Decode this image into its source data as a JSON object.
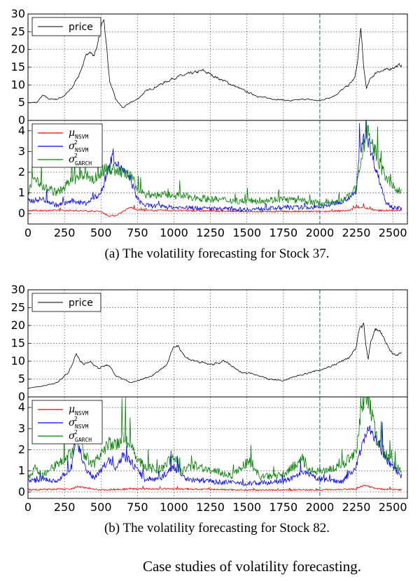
{
  "figure_caption": "Case studies of volatility forecasting.",
  "split_x": 2000,
  "chart_data": [
    {
      "id": "a",
      "type": "line",
      "caption": "(a) The volatility forecasting for Stock 37.",
      "xlim": [
        0,
        2600
      ],
      "xticks": [
        0,
        250,
        500,
        750,
        1000,
        1250,
        1500,
        1750,
        2000,
        2250,
        2500
      ],
      "top": {
        "ylim": [
          0,
          30
        ],
        "yticks": [
          0,
          5,
          10,
          15,
          20,
          25,
          30
        ],
        "legend": [
          "price"
        ],
        "series": [
          {
            "name": "price",
            "color": "#000000",
            "x": [
              0,
              60,
              100,
              150,
              200,
              250,
              300,
              350,
              380,
              420,
              450,
              480,
              500,
              520,
              540,
              560,
              600,
              650,
              700,
              750,
              800,
              900,
              1000,
              1100,
              1200,
              1300,
              1400,
              1500,
              1600,
              1700,
              1800,
              1900,
              2000,
              2100,
              2200,
              2240,
              2260,
              2280,
              2300,
              2320,
              2350,
              2400,
              2450,
              2500,
              2550,
              2600
            ],
            "y": [
              5,
              5,
              7,
              6,
              6,
              7,
              9,
              13,
              16,
              20,
              18,
              22,
              26,
              29,
              20,
              11,
              6,
              3.5,
              5,
              6,
              8,
              10,
              12,
              13,
              14,
              12,
              10,
              8,
              6.5,
              6,
              5.5,
              6,
              5.5,
              7,
              10,
              12,
              17,
              26,
              15,
              9,
              12,
              14,
              14,
              15,
              15.5,
              16
            ]
          }
        ]
      },
      "bottom": {
        "ylim": [
          -0.5,
          4.5
        ],
        "yticks": [
          0,
          1,
          2,
          3,
          4
        ],
        "legend": [
          "μNSVM",
          "σ²NSVM",
          "σ²GARCH"
        ],
        "series": [
          {
            "name": "μNSVM",
            "color": "#ff0000",
            "x": [
              0,
              300,
              500,
              550,
              600,
              650,
              700,
              750,
              800,
              1000,
              1500,
              2000,
              2200,
              2250,
              2300,
              2350,
              2400,
              2600
            ],
            "y": [
              0.15,
              0.15,
              0.1,
              -0.1,
              -0.1,
              0.1,
              0.3,
              0.2,
              0.15,
              0.15,
              0.1,
              0.1,
              0.15,
              0.3,
              0.3,
              0.2,
              0.15,
              0.15
            ]
          },
          {
            "name": "σ²NSVM",
            "color": "#0000ff",
            "x": [
              0,
              100,
              200,
              300,
              400,
              500,
              550,
              580,
              620,
              660,
              700,
              750,
              800,
              1000,
              1500,
              1800,
              2000,
              2150,
              2250,
              2270,
              2300,
              2330,
              2350,
              2400,
              2450,
              2500,
              2600
            ],
            "y": [
              0.6,
              0.7,
              0.4,
              0.6,
              0.5,
              1.0,
              2.0,
              2.9,
              2.3,
              2.0,
              1.7,
              0.7,
              0.4,
              0.3,
              0.2,
              0.3,
              0.3,
              0.6,
              1.0,
              2.8,
              3.8,
              3.6,
              3.0,
              1.8,
              0.6,
              0.3,
              0.2
            ]
          },
          {
            "name": "σ²GARCH",
            "color": "#008000",
            "x": [
              0,
              50,
              100,
              200,
              300,
              400,
              450,
              500,
              550,
              600,
              650,
              700,
              750,
              800,
              1000,
              1250,
              1500,
              1750,
              2000,
              2150,
              2250,
              2280,
              2320,
              2350,
              2400,
              2450,
              2500,
              2600
            ],
            "y": [
              1.0,
              1.8,
              1.3,
              1.0,
              1.6,
              1.9,
              1.6,
              2.0,
              2.2,
              2.1,
              2.0,
              1.8,
              1.3,
              0.9,
              0.9,
              0.7,
              0.6,
              0.7,
              0.5,
              0.6,
              1.2,
              2.2,
              4.2,
              3.6,
              2.5,
              1.8,
              1.3,
              0.9
            ]
          }
        ]
      }
    },
    {
      "id": "b",
      "type": "line",
      "caption": "(b) The volatility forecasting for Stock 82.",
      "xlim": [
        0,
        2600
      ],
      "xticks": [
        0,
        250,
        500,
        750,
        1000,
        1250,
        1500,
        1750,
        2000,
        2250,
        2500
      ],
      "top": {
        "ylim": [
          0,
          30
        ],
        "yticks": [
          0,
          5,
          10,
          15,
          20,
          25,
          30
        ],
        "legend": [
          "price"
        ],
        "series": [
          {
            "name": "price",
            "color": "#000000",
            "x": [
              0,
              100,
              200,
              280,
              330,
              380,
              430,
              480,
              550,
              600,
              650,
              700,
              750,
              850,
              950,
              1000,
              1030,
              1080,
              1150,
              1250,
              1350,
              1450,
              1550,
              1650,
              1750,
              1850,
              1950,
              2000,
              2100,
              2200,
              2250,
              2270,
              2300,
              2330,
              2350,
              2380,
              2420,
              2450,
              2500,
              2550,
              2600
            ],
            "y": [
              2.5,
              3,
              4,
              7,
              12,
              9,
              10,
              8,
              9,
              6,
              5,
              4,
              4.5,
              6,
              9,
              14,
              14.5,
              11,
              10,
              9,
              10,
              7,
              6.5,
              5,
              4.5,
              6,
              7,
              7.5,
              9,
              11,
              14,
              19,
              20,
              10,
              16,
              19,
              18,
              15,
              12,
              12,
              13
            ]
          }
        ]
      },
      "bottom": {
        "ylim": [
          -0.3,
          4.5
        ],
        "yticks": [
          0,
          1,
          2,
          3,
          4
        ],
        "legend": [
          "μNSVM",
          "σ²NSVM",
          "σ²GARCH"
        ],
        "series": [
          {
            "name": "μNSVM",
            "color": "#ff0000",
            "x": [
              0,
              300,
              340,
              500,
              700,
              1000,
              1500,
              2000,
              2250,
              2300,
              2350,
              2400,
              2600
            ],
            "y": [
              0.1,
              0.15,
              0.25,
              0.1,
              0.15,
              0.15,
              0.1,
              0.1,
              0.15,
              0.3,
              0.25,
              0.15,
              0.1
            ]
          },
          {
            "name": "σ²NSVM",
            "color": "#0000ff",
            "x": [
              0,
              100,
              200,
              300,
              330,
              350,
              380,
              400,
              450,
              500,
              550,
              600,
              650,
              700,
              750,
              800,
              900,
              1000,
              1050,
              1100,
              1250,
              1500,
              1750,
              1900,
              2000,
              2150,
              2250,
              2300,
              2330,
              2350,
              2380,
              2420,
              2450,
              2500,
              2550,
              2600
            ],
            "y": [
              0.5,
              0.6,
              0.5,
              1.2,
              2.8,
              2.0,
              1.5,
              1.0,
              0.7,
              1.0,
              1.5,
              1.2,
              1.7,
              1.5,
              1.0,
              0.6,
              0.6,
              1.2,
              0.8,
              0.6,
              0.5,
              0.4,
              0.5,
              0.9,
              0.6,
              0.5,
              1.2,
              2.5,
              3.1,
              2.8,
              2.5,
              2.0,
              1.6,
              1.2,
              0.8,
              0.6
            ]
          },
          {
            "name": "σ²GARCH",
            "color": "#008000",
            "x": [
              0,
              50,
              100,
              200,
              280,
              320,
              350,
              380,
              450,
              500,
              550,
              600,
              650,
              700,
              750,
              800,
              900,
              1000,
              1050,
              1150,
              1250,
              1400,
              1500,
              1600,
              1750,
              1880,
              1920,
              2000,
              2150,
              2250,
              2280,
              2310,
              2340,
              2370,
              2400,
              2450,
              2500,
              2600
            ],
            "y": [
              0.6,
              1.2,
              0.8,
              1.3,
              1.8,
              2.0,
              3.6,
              1.8,
              1.3,
              1.8,
              2.3,
              2.2,
              2.5,
              2.3,
              1.6,
              1.2,
              1.0,
              1.7,
              1.0,
              1.3,
              1.0,
              0.8,
              1.4,
              0.7,
              0.8,
              1.6,
              1.0,
              1.0,
              1.2,
              2.0,
              3.5,
              4.5,
              4.2,
              3.2,
              2.4,
              1.8,
              1.3,
              0.8
            ]
          }
        ]
      }
    }
  ]
}
